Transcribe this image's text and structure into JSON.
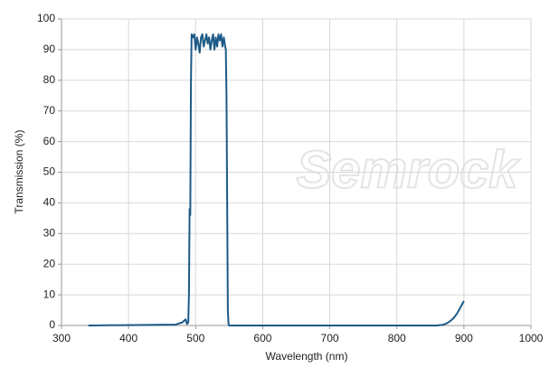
{
  "chart_data": {
    "type": "line",
    "xlabel": "Wavelength (nm)",
    "ylabel": "Transmission (%)",
    "watermark": "Semrock",
    "x": [
      340,
      470,
      480,
      485,
      487,
      489,
      490,
      491,
      492,
      493,
      494,
      496,
      498,
      500,
      502,
      504,
      506,
      508,
      510,
      512,
      514,
      516,
      518,
      520,
      522,
      524,
      526,
      528,
      530,
      532,
      534,
      536,
      538,
      540,
      542,
      544,
      545,
      546,
      547,
      548,
      549,
      550,
      860,
      870,
      875,
      880,
      885,
      890,
      895,
      900
    ],
    "values": [
      0,
      0.3,
      1,
      2,
      0.5,
      1,
      10,
      38,
      36,
      80,
      95,
      94,
      95,
      90,
      94,
      92,
      89,
      94,
      95,
      91,
      93,
      95,
      92,
      94,
      90,
      93,
      95,
      90,
      94,
      91,
      95,
      93,
      95,
      91,
      94,
      91,
      90,
      75,
      40,
      5,
      0.5,
      0,
      0,
      0.3,
      0.8,
      1.5,
      2.5,
      4,
      6,
      8
    ],
    "color": "#1d5a87",
    "xlim": [
      300,
      1000
    ],
    "xticks": [
      300,
      400,
      500,
      600,
      700,
      800,
      900,
      1000
    ],
    "ylim": [
      0,
      100
    ],
    "yticks": [
      0,
      10,
      20,
      30,
      40,
      50,
      60,
      70,
      80,
      90,
      100
    ],
    "grid": true
  }
}
